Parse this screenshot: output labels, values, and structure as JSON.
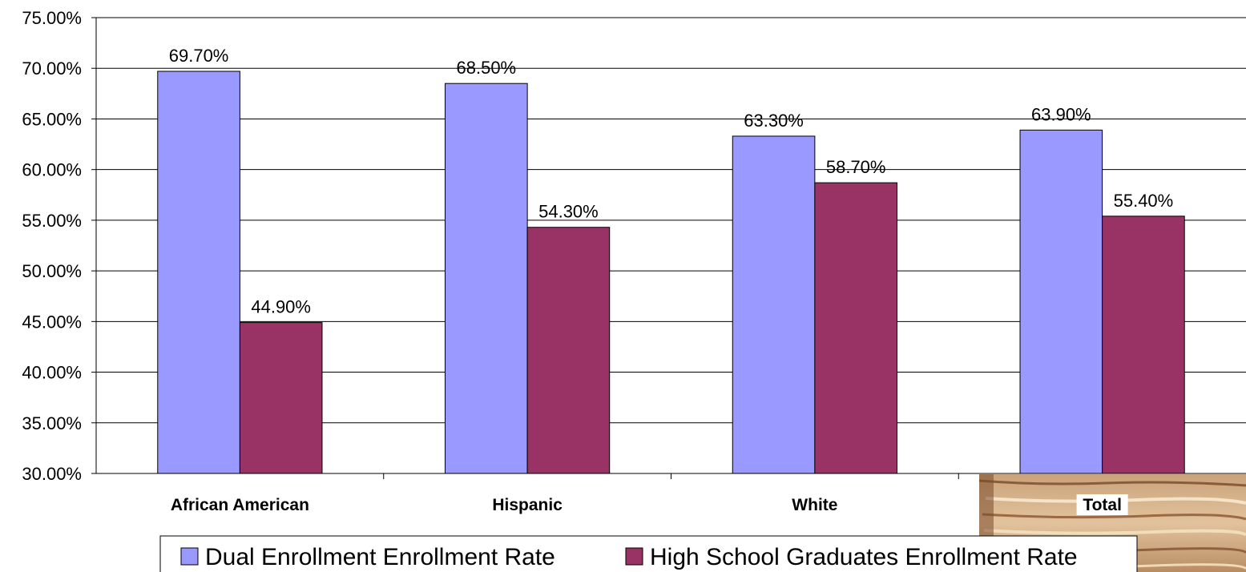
{
  "chart_data": {
    "type": "bar",
    "categories": [
      "African American",
      "Hispanic",
      "White",
      "Total"
    ],
    "series": [
      {
        "name": "Dual Enrollment Enrollment Rate",
        "values": [
          69.7,
          68.5,
          63.3,
          63.9
        ],
        "labels": [
          "69.70%",
          "68.50%",
          "63.30%",
          "63.90%"
        ],
        "color": "#9999FF"
      },
      {
        "name": "High School Graduates Enrollment Rate",
        "values": [
          44.9,
          54.3,
          58.7,
          55.4
        ],
        "labels": [
          "44.90%",
          "54.30%",
          "58.70%",
          "55.40%"
        ],
        "color": "#993366"
      }
    ],
    "ylim": [
      30,
      75
    ],
    "y_ticks": [
      {
        "value": 30,
        "label": "30.00%"
      },
      {
        "value": 35,
        "label": "35.00%"
      },
      {
        "value": 40,
        "label": "40.00%"
      },
      {
        "value": 45,
        "label": "45.00%"
      },
      {
        "value": 50,
        "label": "50.00%"
      },
      {
        "value": 55,
        "label": "55.00%"
      },
      {
        "value": 60,
        "label": "60.00%"
      },
      {
        "value": 65,
        "label": "65.00%"
      },
      {
        "value": 70,
        "label": "70.00%"
      },
      {
        "value": 75,
        "label": "75.00%"
      }
    ],
    "title": "",
    "xlabel": "",
    "ylabel": "",
    "grid": true,
    "legend_position": "bottom",
    "decoration_icon": "book-stack-image"
  }
}
